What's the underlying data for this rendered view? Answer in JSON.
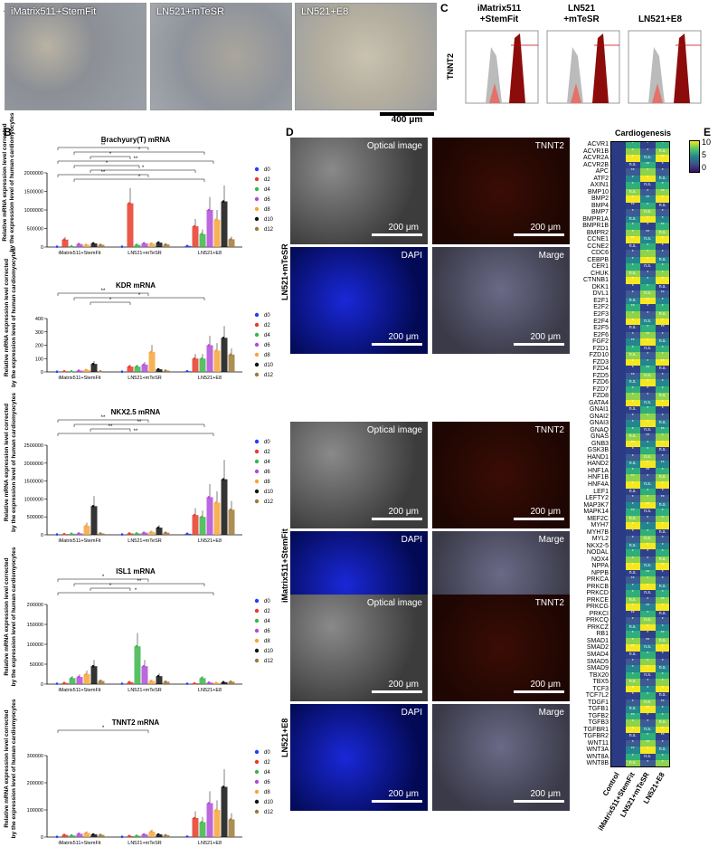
{
  "panels": {
    "A": "A",
    "B": "B",
    "C": "C",
    "D": "D",
    "E": "E"
  },
  "panelA": {
    "images": [
      "iMatrix511+StemFit",
      "LN521+mTeSR",
      "LN521+E8"
    ],
    "scale": "400 μm"
  },
  "panelC": {
    "ylabel": "TNNT2",
    "titles": [
      "iMatrix511\n+StemFit",
      "LN521\n+mTeSR",
      "LN521+E8"
    ]
  },
  "panelB": {
    "ylabel_line1": "Relative mRNA expression level corrected",
    "ylabel_line2": "by the expression level of human cardiomyocytes",
    "groups": [
      "iMatrix511+StemFit",
      "LN521+mTeSR",
      "LN521+E8"
    ],
    "legend": [
      "d0",
      "d2",
      "d4",
      "d6",
      "d8",
      "d10",
      "d12"
    ],
    "colors": [
      "#1f3fff",
      "#e63b2a",
      "#3cb54a",
      "#b24bd8",
      "#f6a43a",
      "#111111",
      "#a07a3a"
    ]
  },
  "chart_data": [
    {
      "type": "bar",
      "title": "Brachyury(T) mRNA",
      "yticks": [
        "0",
        "500000",
        "1000000",
        "1500000",
        "2000000"
      ],
      "ylim": [
        0,
        2000000
      ],
      "series": [
        {
          "name": "d0",
          "values": [
            10000,
            10000,
            30000
          ]
        },
        {
          "name": "d2",
          "values": [
            200000,
            1180000,
            560000
          ]
        },
        {
          "name": "d4",
          "values": [
            20000,
            60000,
            350000
          ]
        },
        {
          "name": "d6",
          "values": [
            80000,
            100000,
            1000000
          ]
        },
        {
          "name": "d8",
          "values": [
            60000,
            90000,
            740000
          ]
        },
        {
          "name": "d10",
          "values": [
            100000,
            120000,
            1230000
          ]
        },
        {
          "name": "d12",
          "values": [
            60000,
            70000,
            210000
          ]
        }
      ],
      "significance": [
        "**",
        "*",
        "*",
        "**",
        "*",
        "*",
        "**",
        "*"
      ]
    },
    {
      "type": "bar",
      "title": "KDR mRNA",
      "yticks": [
        "0",
        "100",
        "200",
        "300",
        "400"
      ],
      "ylim": [
        0,
        400
      ],
      "series": [
        {
          "name": "d0",
          "values": [
            2,
            2,
            5
          ]
        },
        {
          "name": "d2",
          "values": [
            5,
            40,
            100
          ]
        },
        {
          "name": "d4",
          "values": [
            5,
            40,
            100
          ]
        },
        {
          "name": "d6",
          "values": [
            10,
            55,
            200
          ]
        },
        {
          "name": "d8",
          "values": [
            15,
            150,
            160
          ]
        },
        {
          "name": "d10",
          "values": [
            60,
            20,
            255
          ]
        },
        {
          "name": "d12",
          "values": [
            5,
            10,
            130
          ]
        }
      ],
      "significance": [
        "**",
        "*",
        "*"
      ]
    },
    {
      "type": "bar",
      "title": "NKX2.5 mRNA",
      "yticks": [
        "0",
        "500000",
        "1000000",
        "1500000",
        "2000000",
        "2500000"
      ],
      "ylim": [
        0,
        2500000
      ],
      "series": [
        {
          "name": "d0",
          "values": [
            10000,
            10000,
            30000
          ]
        },
        {
          "name": "d2",
          "values": [
            20000,
            40000,
            550000
          ]
        },
        {
          "name": "d4",
          "values": [
            30000,
            40000,
            500000
          ]
        },
        {
          "name": "d6",
          "values": [
            40000,
            60000,
            1050000
          ]
        },
        {
          "name": "d8",
          "values": [
            250000,
            80000,
            900000
          ]
        },
        {
          "name": "d10",
          "values": [
            800000,
            200000,
            1550000
          ]
        },
        {
          "name": "d12",
          "values": [
            40000,
            60000,
            700000
          ]
        }
      ],
      "significance": [
        "**",
        "**",
        "**",
        "**"
      ]
    },
    {
      "type": "bar",
      "title": "ISL1 mRNA",
      "yticks": [
        "0",
        "50000",
        "100000",
        "150000",
        "200000"
      ],
      "ylim": [
        0,
        200000
      ],
      "series": [
        {
          "name": "d0",
          "values": [
            1000,
            1000,
            1000
          ]
        },
        {
          "name": "d2",
          "values": [
            3000,
            5000,
            2000
          ]
        },
        {
          "name": "d4",
          "values": [
            15000,
            95000,
            15000
          ]
        },
        {
          "name": "d6",
          "values": [
            18000,
            45000,
            4000
          ]
        },
        {
          "name": "d8",
          "values": [
            25000,
            8000,
            3000
          ]
        },
        {
          "name": "d10",
          "values": [
            45000,
            20000,
            5000
          ]
        },
        {
          "name": "d12",
          "values": [
            8000,
            6000,
            6000
          ]
        }
      ],
      "significance": [
        "*",
        "**",
        "*",
        "*"
      ]
    },
    {
      "type": "bar",
      "title": "TNNT2 mRNA",
      "yticks": [
        "0",
        "100000",
        "200000",
        "300000"
      ],
      "ylim": [
        0,
        300000
      ],
      "series": [
        {
          "name": "d0",
          "values": [
            1000,
            1000,
            2000
          ]
        },
        {
          "name": "d2",
          "values": [
            8000,
            4000,
            70000
          ]
        },
        {
          "name": "d4",
          "values": [
            6000,
            5000,
            55000
          ]
        },
        {
          "name": "d6",
          "values": [
            12000,
            10000,
            125000
          ]
        },
        {
          "name": "d8",
          "values": [
            15000,
            20000,
            100000
          ]
        },
        {
          "name": "d10",
          "values": [
            10000,
            10000,
            185000
          ]
        },
        {
          "name": "d12",
          "values": [
            8000,
            7000,
            65000
          ]
        }
      ],
      "significance": [
        "*"
      ]
    },
    {
      "type": "heatmap",
      "title": "Cardiogenesis",
      "columns": [
        "Control",
        "iMatrix511+StemFit",
        "LN521+mTeSR",
        "LN521+E8"
      ],
      "colorbar_ticks": [
        "10",
        "5",
        "0"
      ],
      "rows": [
        "ACVR1",
        "ACVR1B",
        "ACVR2A",
        "ACVR2B",
        "APC",
        "ATF2",
        "AXIN1",
        "BMP10",
        "BMP2",
        "BMP4",
        "BMP7",
        "BMPR1A",
        "BMPR1B",
        "BMPR2",
        "CCNE1",
        "CCNE2",
        "CDC6",
        "CEBPB",
        "CER1",
        "CHUK",
        "CTNNB1",
        "DKK1",
        "DVL1",
        "E2F1",
        "E2F2",
        "E2F3",
        "E2F4",
        "E2F5",
        "E2F6",
        "FGF2",
        "FZD1",
        "FZD10",
        "FZD3",
        "FZD4",
        "FZD5",
        "FZD6",
        "FZD7",
        "FZD8",
        "GATA4",
        "GNAI1",
        "GNAI2",
        "GNAI3",
        "GNAQ",
        "GNAS",
        "GNB3",
        "GSK3B",
        "HAND1",
        "HAND2",
        "HNF1A",
        "HNF1B",
        "HNF4A",
        "LEF1",
        "LEFTY2",
        "MAP3K7",
        "MAPK14",
        "MEF2C",
        "MYH7",
        "MYH7B",
        "MYL2",
        "NKX2-5",
        "NODAL",
        "NOX4",
        "NPPA",
        "NPPB",
        "PRKCA",
        "PRKCB",
        "PRKCD",
        "PRKCE",
        "PRKCG",
        "PRKCI",
        "PRKCQ",
        "PRKCZ",
        "RB1",
        "SMAD1",
        "SMAD2",
        "SMAD4",
        "SMAD5",
        "SMAD9",
        "TBX20",
        "TBX5",
        "TCF3",
        "TCF7L2",
        "TDGF1",
        "TGFB1",
        "TGFB2",
        "TGFB3",
        "TGFBR1",
        "TGFBR2",
        "WNT11",
        "WNT3A",
        "WNT8A",
        "WNT8B"
      ]
    }
  ],
  "panelD": {
    "rows": [
      "LN521+mTeSR",
      "iMatrix511+StemFit",
      "LN521+E8"
    ],
    "labels": [
      "Optical image",
      "TNNT2",
      "DAPI",
      "Marge"
    ],
    "scale": "200 μm"
  },
  "panelE": {
    "title": "Cardiogenesis",
    "ns": "n.s.",
    "star": "*",
    "dstar": "**"
  }
}
